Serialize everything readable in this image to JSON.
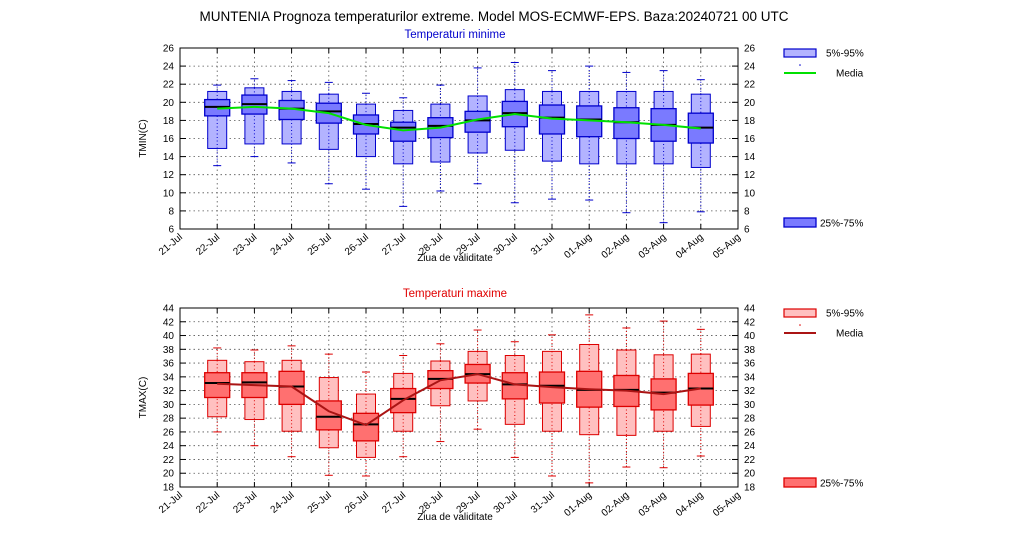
{
  "title": "MUNTENIA  Prognoza temperaturilor extreme.  Model MOS-ECMWF-EPS. Baza:20240721 00 UTC",
  "x_labels": [
    "21-Jul",
    "22-Jul",
    "23-Jul",
    "24-Jul",
    "25-Jul",
    "26-Jul",
    "27-Jul",
    "28-Jul",
    "29-Jul",
    "30-Jul",
    "31-Jul",
    "01-Aug",
    "02-Aug",
    "03-Aug",
    "04-Aug",
    "05-Aug"
  ],
  "chart_data": [
    {
      "type": "box",
      "title": "Temperaturi minime",
      "xlabel": "Ziua de validitate",
      "ylabel": "TMIN(C)",
      "ylim": [
        6,
        26
      ],
      "yticks": [
        "6",
        "8",
        "10",
        "12",
        "14",
        "16",
        "18",
        "20",
        "22",
        "24",
        "26"
      ],
      "categories": [
        "22-Jul",
        "23-Jul",
        "24-Jul",
        "25-Jul",
        "26-Jul",
        "27-Jul",
        "28-Jul",
        "29-Jul",
        "30-Jul",
        "31-Jul",
        "01-Aug",
        "02-Aug",
        "03-Aug",
        "04-Aug"
      ],
      "colors": {
        "title": "#0000cc",
        "light": "#b3b3ff",
        "dark": "#7a7aff",
        "edge": "#0000cc",
        "mean": "#00e000"
      },
      "legend": {
        "p5_95": "5%-95%",
        "mean": "Media",
        "p25_75": "25%-75%"
      },
      "series": [
        {
          "name": "min",
          "values": [
            13.0,
            14.0,
            13.3,
            11.0,
            10.4,
            8.5,
            10.2,
            11.0,
            8.9,
            9.3,
            9.2,
            7.8,
            6.7,
            7.9
          ]
        },
        {
          "name": "p5",
          "values": [
            14.9,
            15.4,
            15.4,
            14.8,
            14.0,
            13.2,
            13.4,
            14.4,
            14.7,
            13.5,
            13.2,
            13.2,
            13.2,
            12.8
          ]
        },
        {
          "name": "p25",
          "values": [
            18.5,
            18.7,
            18.1,
            17.7,
            16.5,
            15.7,
            16.1,
            16.7,
            17.3,
            16.5,
            16.2,
            16.0,
            15.7,
            15.5
          ]
        },
        {
          "name": "median",
          "values": [
            19.5,
            19.8,
            19.3,
            19.0,
            17.6,
            17.2,
            17.4,
            18.0,
            18.8,
            18.3,
            18.1,
            17.8,
            17.5,
            17.2
          ]
        },
        {
          "name": "p75",
          "values": [
            20.3,
            20.8,
            20.2,
            19.9,
            18.6,
            17.8,
            18.3,
            19.0,
            20.1,
            19.7,
            19.6,
            19.4,
            19.3,
            18.8
          ]
        },
        {
          "name": "p95",
          "values": [
            21.2,
            21.6,
            21.2,
            20.9,
            19.8,
            19.1,
            19.8,
            20.7,
            21.4,
            21.2,
            21.2,
            21.2,
            21.2,
            20.9
          ]
        },
        {
          "name": "max",
          "values": [
            21.9,
            22.6,
            22.4,
            22.2,
            21.0,
            20.5,
            21.9,
            23.8,
            24.4,
            23.5,
            24.0,
            23.3,
            23.5,
            22.5
          ]
        },
        {
          "name": "Media",
          "values": [
            19.3,
            19.5,
            19.3,
            18.8,
            17.5,
            16.9,
            17.2,
            18.1,
            18.7,
            18.2,
            18.0,
            17.8,
            17.5,
            17.1
          ]
        }
      ]
    },
    {
      "type": "box",
      "title": "Temperaturi maxime",
      "xlabel": "Ziua de validitate",
      "ylabel": "TMAX(C)",
      "ylim": [
        18,
        44
      ],
      "yticks": [
        "18",
        "20",
        "22",
        "24",
        "26",
        "28",
        "30",
        "32",
        "34",
        "36",
        "38",
        "40",
        "42",
        "44"
      ],
      "categories": [
        "22-Jul",
        "23-Jul",
        "24-Jul",
        "25-Jul",
        "26-Jul",
        "27-Jul",
        "28-Jul",
        "29-Jul",
        "30-Jul",
        "31-Jul",
        "01-Aug",
        "02-Aug",
        "03-Aug",
        "04-Aug"
      ],
      "colors": {
        "title": "#e00000",
        "light": "#ffc0c0",
        "dark": "#ff7070",
        "edge": "#dd0000",
        "mean": "#aa1414"
      },
      "legend": {
        "p5_95": "5%-95%",
        "mean": "Media",
        "p25_75": "25%-75%"
      },
      "series": [
        {
          "name": "min",
          "values": [
            26.0,
            24.0,
            22.4,
            19.7,
            19.6,
            22.4,
            24.6,
            26.4,
            22.3,
            19.6,
            18.6,
            20.9,
            20.8,
            22.5
          ]
        },
        {
          "name": "p5",
          "values": [
            28.2,
            27.8,
            26.1,
            23.7,
            22.3,
            26.1,
            29.8,
            30.5,
            27.1,
            26.1,
            25.6,
            25.5,
            26.1,
            26.8
          ]
        },
        {
          "name": "p25",
          "values": [
            31.0,
            31.0,
            30.0,
            26.3,
            24.7,
            28.8,
            32.3,
            33.1,
            30.8,
            30.2,
            29.6,
            29.7,
            29.2,
            29.9
          ]
        },
        {
          "name": "median",
          "values": [
            33.1,
            33.2,
            32.6,
            28.2,
            27.1,
            30.8,
            33.7,
            34.4,
            32.9,
            32.7,
            32.1,
            32.1,
            31.7,
            32.3
          ]
        },
        {
          "name": "p75",
          "values": [
            34.6,
            34.6,
            34.8,
            30.5,
            28.7,
            32.3,
            34.9,
            35.8,
            34.6,
            34.7,
            34.8,
            34.2,
            33.7,
            34.5
          ]
        },
        {
          "name": "p95",
          "values": [
            36.4,
            36.2,
            36.4,
            33.9,
            31.5,
            34.5,
            36.3,
            37.7,
            37.1,
            37.7,
            38.7,
            37.9,
            37.2,
            37.3
          ]
        },
        {
          "name": "max",
          "values": [
            38.2,
            37.9,
            38.5,
            37.3,
            34.7,
            37.1,
            38.8,
            40.8,
            39.1,
            40.1,
            43.0,
            41.1,
            42.1,
            40.9
          ]
        },
        {
          "name": "Media",
          "values": [
            33.0,
            32.8,
            32.6,
            29.0,
            27.0,
            30.6,
            33.5,
            34.4,
            32.9,
            32.5,
            32.2,
            32.0,
            31.5,
            32.3
          ]
        }
      ]
    }
  ]
}
